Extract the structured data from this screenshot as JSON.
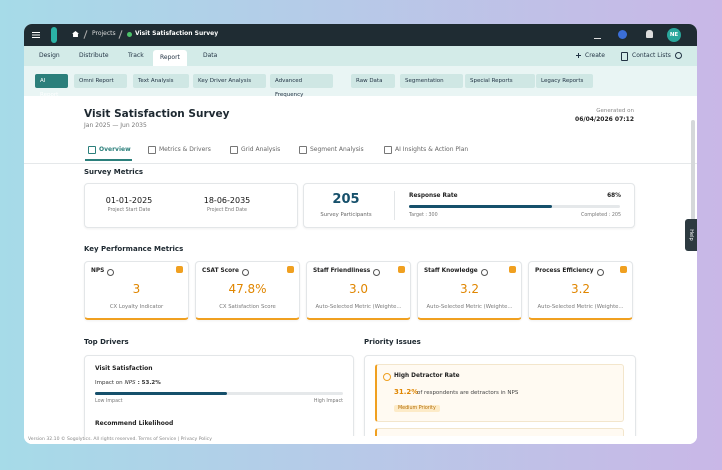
{
  "topbar": {
    "breadcrumb": [
      "Projects",
      "Visit Satisfaction Survey"
    ],
    "avatar": "NE"
  },
  "nav": {
    "tabs": [
      "Design",
      "Distribute",
      "Track",
      "Report",
      "Data"
    ],
    "actions": [
      "Create",
      "Contact Lists"
    ]
  },
  "toolbar": [
    "AI Report",
    "Omni Report",
    "Text Analysis",
    "Key Driver Analysis",
    "Advanced Frequency",
    "Raw Data",
    "Segmentation",
    "Special Reports",
    "Legacy Reports"
  ],
  "header": {
    "title": "Visit Satisfaction Survey",
    "subtitle": "Jan 2025 — Jun 2035",
    "generated_label": "Generated on",
    "generated_date": "06/04/2026 07:12"
  },
  "tabs": [
    "Overview",
    "Metrics & Drivers",
    "Grid Analysis",
    "Segment Analysis",
    "AI Insights & Action Plan"
  ],
  "survey_metrics": {
    "heading": "Survey Metrics",
    "dates": [
      {
        "value": "01-01-2025",
        "label": "Project Start Date"
      },
      {
        "value": "18-06-2035",
        "label": "Project End Date"
      }
    ],
    "participants": {
      "value": "205",
      "label": "Survey Participants"
    },
    "response": {
      "label": "Response Rate",
      "value": "68%",
      "target": "Target : 300",
      "completed": "Completed : 205"
    }
  },
  "kpi": {
    "heading": "Key Performance Metrics",
    "cards": [
      {
        "name": "NPS",
        "value": "3",
        "caption": "CX Loyalty Indicator"
      },
      {
        "name": "CSAT Score",
        "value": "47.8%",
        "caption": "CX Satisfaction Score"
      },
      {
        "name": "Staff Friendliness",
        "value": "3.0",
        "caption": "Auto-Selected Metric (Weighte..."
      },
      {
        "name": "Staff Knowledge",
        "value": "3.2",
        "caption": "Auto-Selected Metric (Weighte..."
      },
      {
        "name": "Process Efficiency",
        "value": "3.2",
        "caption": "Auto-Selected Metric (Weighte..."
      }
    ]
  },
  "top_drivers": {
    "heading": "Top Drivers",
    "items": [
      {
        "name": "Visit Satisfaction",
        "impact_prefix": "Impact on",
        "impact_metric": "NPS",
        "impact_value": ": 53.2%",
        "low": "Low Impact",
        "high": "High Impact"
      },
      {
        "name": "Recommend Likelihood"
      }
    ]
  },
  "priority": {
    "heading": "Priority Issues",
    "items": [
      {
        "title": "High Detractor Rate",
        "highlight": "31.2%",
        "text": "of respondents are detractors in NPS",
        "badge": "Medium Priority"
      }
    ]
  },
  "footer": "Version 32.10 © Sogolytics. All rights reserved. Terms of Service | Privacy Policy",
  "help": "Help"
}
